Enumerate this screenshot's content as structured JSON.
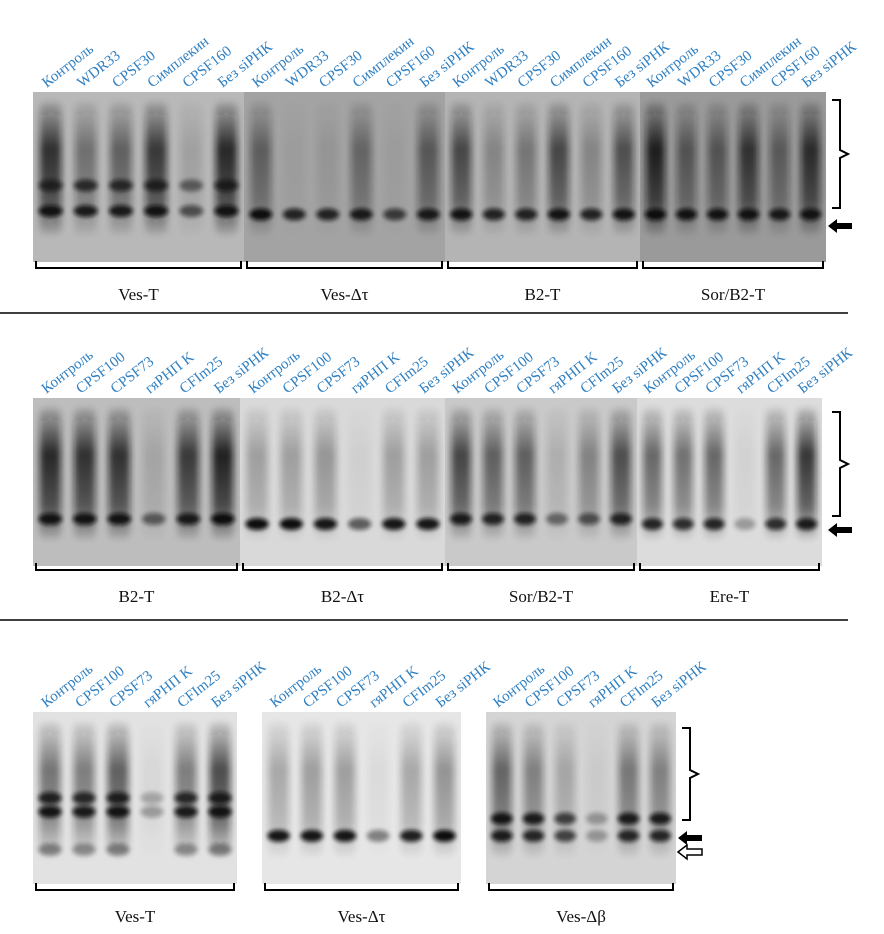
{
  "colors": {
    "lane_label": "#2f7fc1",
    "gel_light": "#c8c8c8",
    "gel_dark": "#1a1a1a",
    "separator": "#000000",
    "bracket": "#000000"
  },
  "panels": [
    {
      "lane_labels": [
        "Контроль",
        "WDR33",
        "CPSF30",
        "Симплекин",
        "CPSF160",
        "Без siРНК"
      ],
      "marker_arrows": [
        "solid-arrow"
      ],
      "blots": [
        {
          "label": "Ves-T",
          "bg": "#b8b8b8",
          "lanes": [
            {
              "smear": 0.85,
              "bands": [
                [
                  0.55,
                  0.7
                ],
                [
                  0.7,
                  0.95
                ]
              ]
            },
            {
              "smear": 0.45,
              "bands": [
                [
                  0.55,
                  0.75
                ],
                [
                  0.7,
                  0.9
                ]
              ]
            },
            {
              "smear": 0.55,
              "bands": [
                [
                  0.55,
                  0.75
                ],
                [
                  0.7,
                  0.9
                ]
              ]
            },
            {
              "smear": 0.8,
              "bands": [
                [
                  0.55,
                  0.75
                ],
                [
                  0.7,
                  0.95
                ]
              ]
            },
            {
              "smear": 0.15,
              "bands": [
                [
                  0.55,
                  0.5
                ],
                [
                  0.7,
                  0.6
                ]
              ]
            },
            {
              "smear": 0.9,
              "bands": [
                [
                  0.55,
                  0.75
                ],
                [
                  0.7,
                  0.95
                ]
              ]
            }
          ]
        },
        {
          "label": "Ves-Δτ",
          "bg": "#a3a3a3",
          "lanes": [
            {
              "smear": 0.5,
              "bands": [
                [
                  0.72,
                  1.0
                ]
              ]
            },
            {
              "smear": 0.05,
              "bands": [
                [
                  0.72,
                  0.85
                ]
              ]
            },
            {
              "smear": 0.1,
              "bands": [
                [
                  0.72,
                  0.85
                ]
              ]
            },
            {
              "smear": 0.45,
              "bands": [
                [
                  0.72,
                  0.9
                ]
              ]
            },
            {
              "smear": 0.05,
              "bands": [
                [
                  0.72,
                  0.7
                ]
              ]
            },
            {
              "smear": 0.55,
              "bands": [
                [
                  0.72,
                  0.9
                ]
              ]
            }
          ]
        },
        {
          "label": "B2-T",
          "bg": "#b4b4b4",
          "lanes": [
            {
              "smear": 0.7,
              "bands": [
                [
                  0.72,
                  0.95
                ]
              ]
            },
            {
              "smear": 0.3,
              "bands": [
                [
                  0.72,
                  0.85
                ]
              ]
            },
            {
              "smear": 0.4,
              "bands": [
                [
                  0.72,
                  0.85
                ]
              ]
            },
            {
              "smear": 0.7,
              "bands": [
                [
                  0.72,
                  0.95
                ]
              ]
            },
            {
              "smear": 0.3,
              "bands": [
                [
                  0.72,
                  0.85
                ]
              ]
            },
            {
              "smear": 0.65,
              "bands": [
                [
                  0.72,
                  0.95
                ]
              ]
            }
          ]
        },
        {
          "label": "Sor/B2-T",
          "bg": "#9a9a9a",
          "lanes": [
            {
              "smear": 0.95,
              "bands": [
                [
                  0.72,
                  1.0
                ]
              ]
            },
            {
              "smear": 0.55,
              "bands": [
                [
                  0.72,
                  0.95
                ]
              ]
            },
            {
              "smear": 0.55,
              "bands": [
                [
                  0.72,
                  0.95
                ]
              ]
            },
            {
              "smear": 0.8,
              "bands": [
                [
                  0.72,
                  0.95
                ]
              ]
            },
            {
              "smear": 0.5,
              "bands": [
                [
                  0.72,
                  0.9
                ]
              ]
            },
            {
              "smear": 0.85,
              "bands": [
                [
                  0.72,
                  0.95
                ]
              ]
            }
          ]
        }
      ]
    },
    {
      "lane_labels": [
        "Контроль",
        "CPSF100",
        "CPSF73",
        "гяРНП K",
        "CFIm25",
        "Без siРНК"
      ],
      "marker_arrows": [
        "solid-arrow"
      ],
      "blots": [
        {
          "label": "B2-T",
          "bg": "#bdbdbd",
          "lanes": [
            {
              "smear": 0.9,
              "bands": [
                [
                  0.72,
                  0.95
                ]
              ]
            },
            {
              "smear": 0.85,
              "bands": [
                [
                  0.72,
                  0.95
                ]
              ]
            },
            {
              "smear": 0.85,
              "bands": [
                [
                  0.72,
                  0.95
                ]
              ]
            },
            {
              "smear": 0.15,
              "bands": [
                [
                  0.72,
                  0.55
                ]
              ]
            },
            {
              "smear": 0.8,
              "bands": [
                [
                  0.72,
                  0.9
                ]
              ]
            },
            {
              "smear": 0.95,
              "bands": [
                [
                  0.72,
                  1.0
                ]
              ]
            }
          ]
        },
        {
          "label": "B2-Δτ",
          "bg": "#d9d9d9",
          "lanes": [
            {
              "smear": 0.3,
              "bands": [
                [
                  0.75,
                  1.0
                ]
              ]
            },
            {
              "smear": 0.3,
              "bands": [
                [
                  0.75,
                  1.0
                ]
              ]
            },
            {
              "smear": 0.35,
              "bands": [
                [
                  0.75,
                  0.95
                ]
              ]
            },
            {
              "smear": 0.05,
              "bands": [
                [
                  0.75,
                  0.6
                ]
              ]
            },
            {
              "smear": 0.3,
              "bands": [
                [
                  0.75,
                  0.95
                ]
              ]
            },
            {
              "smear": 0.3,
              "bands": [
                [
                  0.75,
                  0.95
                ]
              ]
            }
          ]
        },
        {
          "label": "Sor/B2-T",
          "bg": "#c9c9c9",
          "lanes": [
            {
              "smear": 0.75,
              "bands": [
                [
                  0.72,
                  0.9
                ]
              ]
            },
            {
              "smear": 0.6,
              "bands": [
                [
                  0.72,
                  0.85
                ]
              ]
            },
            {
              "smear": 0.6,
              "bands": [
                [
                  0.72,
                  0.85
                ]
              ]
            },
            {
              "smear": 0.15,
              "bands": [
                [
                  0.72,
                  0.5
                ]
              ]
            },
            {
              "smear": 0.4,
              "bands": [
                [
                  0.72,
                  0.6
                ]
              ]
            },
            {
              "smear": 0.7,
              "bands": [
                [
                  0.72,
                  0.85
                ]
              ]
            }
          ]
        },
        {
          "label": "Ere-T",
          "bg": "#dcdcdc",
          "lanes": [
            {
              "smear": 0.6,
              "bands": [
                [
                  0.75,
                  0.85
                ]
              ]
            },
            {
              "smear": 0.55,
              "bands": [
                [
                  0.75,
                  0.8
                ]
              ]
            },
            {
              "smear": 0.6,
              "bands": [
                [
                  0.75,
                  0.85
                ]
              ]
            },
            {
              "smear": 0.05,
              "bands": [
                [
                  0.75,
                  0.3
                ]
              ]
            },
            {
              "smear": 0.6,
              "bands": [
                [
                  0.75,
                  0.8
                ]
              ]
            },
            {
              "smear": 0.85,
              "bands": [
                [
                  0.75,
                  0.9
                ]
              ]
            }
          ]
        }
      ]
    },
    {
      "lane_labels": [
        "Контроль",
        "CPSF100",
        "CPSF73",
        "гяРНП K",
        "CFIm25",
        "Без siРНК"
      ],
      "marker_arrows": [
        "solid-arrow",
        "hollow-arrow"
      ],
      "blots": [
        {
          "label": "Ves-T",
          "bg": "#e2e2e2",
          "lanes": [
            {
              "smear": 0.55,
              "bands": [
                [
                  0.5,
                  0.85
                ],
                [
                  0.58,
                  0.95
                ],
                [
                  0.8,
                  0.4
                ]
              ]
            },
            {
              "smear": 0.5,
              "bands": [
                [
                  0.5,
                  0.8
                ],
                [
                  0.58,
                  0.9
                ],
                [
                  0.8,
                  0.35
                ]
              ]
            },
            {
              "smear": 0.65,
              "bands": [
                [
                  0.5,
                  0.85
                ],
                [
                  0.58,
                  0.95
                ],
                [
                  0.8,
                  0.4
                ]
              ]
            },
            {
              "smear": 0.05,
              "bands": [
                [
                  0.5,
                  0.25
                ],
                [
                  0.58,
                  0.3
                ]
              ]
            },
            {
              "smear": 0.5,
              "bands": [
                [
                  0.5,
                  0.8
                ],
                [
                  0.58,
                  0.9
                ],
                [
                  0.8,
                  0.35
                ]
              ]
            },
            {
              "smear": 0.75,
              "bands": [
                [
                  0.5,
                  0.85
                ],
                [
                  0.58,
                  0.95
                ],
                [
                  0.8,
                  0.4
                ]
              ]
            }
          ]
        },
        {
          "label": "Ves-Δτ",
          "bg": "#e6e6e6",
          "lanes": [
            {
              "smear": 0.3,
              "bands": [
                [
                  0.72,
                  0.95
                ]
              ]
            },
            {
              "smear": 0.35,
              "bands": [
                [
                  0.72,
                  0.95
                ]
              ]
            },
            {
              "smear": 0.35,
              "bands": [
                [
                  0.72,
                  0.95
                ]
              ]
            },
            {
              "smear": 0.05,
              "bands": [
                [
                  0.72,
                  0.45
                ]
              ]
            },
            {
              "smear": 0.3,
              "bands": [
                [
                  0.72,
                  0.9
                ]
              ]
            },
            {
              "smear": 0.4,
              "bands": [
                [
                  0.72,
                  1.0
                ]
              ]
            }
          ]
        },
        {
          "label": "Ves-Δβ",
          "bg": "#d4d4d4",
          "lanes": [
            {
              "smear": 0.6,
              "bands": [
                [
                  0.62,
                  0.95
                ],
                [
                  0.72,
                  0.9
                ]
              ]
            },
            {
              "smear": 0.45,
              "bands": [
                [
                  0.62,
                  0.9
                ],
                [
                  0.72,
                  0.85
                ]
              ]
            },
            {
              "smear": 0.25,
              "bands": [
                [
                  0.62,
                  0.7
                ],
                [
                  0.72,
                  0.7
                ]
              ]
            },
            {
              "smear": 0.05,
              "bands": [
                [
                  0.62,
                  0.3
                ],
                [
                  0.72,
                  0.3
                ]
              ]
            },
            {
              "smear": 0.5,
              "bands": [
                [
                  0.62,
                  0.9
                ],
                [
                  0.72,
                  0.85
                ]
              ]
            },
            {
              "smear": 0.45,
              "bands": [
                [
                  0.62,
                  0.9
                ],
                [
                  0.72,
                  0.85
                ]
              ]
            }
          ]
        }
      ]
    }
  ]
}
